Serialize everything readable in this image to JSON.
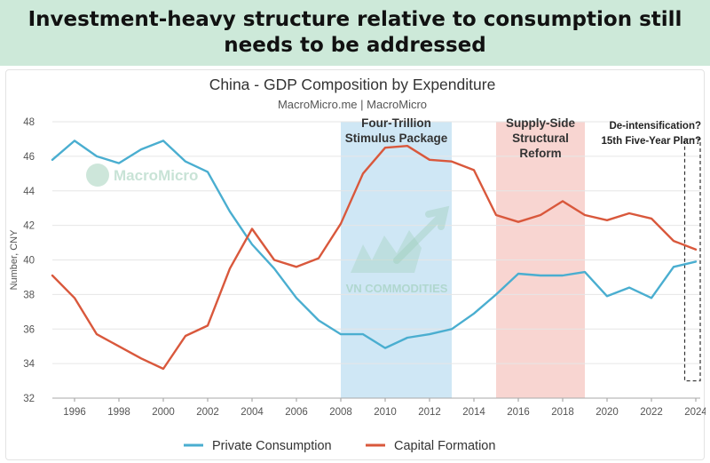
{
  "banner": {
    "title": "Investment-heavy structure relative to consumption still needs to be addressed"
  },
  "chart_data": {
    "type": "line",
    "title": "China - GDP Composition by Expenditure",
    "subtitle": "MacroMicro.me | MacroMicro",
    "ylabel": "Number, CNY",
    "xlabel": "",
    "ylim": [
      32,
      48
    ],
    "xlim": [
      1995,
      2024
    ],
    "yticks": [
      32,
      34,
      36,
      38,
      40,
      42,
      44,
      46,
      48
    ],
    "xticks": [
      1996,
      1998,
      2000,
      2002,
      2004,
      2006,
      2008,
      2010,
      2012,
      2014,
      2016,
      2018,
      2020,
      2022,
      2024
    ],
    "grid": "horizontal",
    "legend_position": "bottom",
    "x": [
      1995,
      1996,
      1997,
      1998,
      1999,
      2000,
      2001,
      2002,
      2003,
      2004,
      2005,
      2006,
      2007,
      2008,
      2009,
      2010,
      2011,
      2012,
      2013,
      2014,
      2015,
      2016,
      2017,
      2018,
      2019,
      2020,
      2021,
      2022,
      2023,
      2024
    ],
    "series": [
      {
        "name": "Private Consumption",
        "color": "#4aaed0",
        "values": [
          45.8,
          46.9,
          46.0,
          45.6,
          46.4,
          46.9,
          45.7,
          45.1,
          42.8,
          40.9,
          39.5,
          37.8,
          36.5,
          35.7,
          35.7,
          34.9,
          35.5,
          35.7,
          36.0,
          36.9,
          38.0,
          39.2,
          39.1,
          39.1,
          39.3,
          37.9,
          38.4,
          37.8,
          39.6,
          39.9
        ]
      },
      {
        "name": "Capital Formation",
        "color": "#d9583c",
        "values": [
          39.1,
          37.8,
          35.7,
          35.0,
          34.3,
          33.7,
          35.6,
          36.2,
          39.5,
          41.8,
          40.0,
          39.6,
          40.1,
          42.1,
          45.0,
          46.5,
          46.6,
          45.8,
          45.7,
          45.2,
          42.6,
          42.2,
          42.6,
          43.4,
          42.6,
          42.3,
          42.7,
          42.4,
          41.1,
          40.6
        ]
      }
    ],
    "bands": [
      {
        "label_lines": [
          "Four-Trillion",
          "Stimulus Package"
        ],
        "x_start": 2008,
        "x_end": 2013,
        "color": "#cfe7f5"
      },
      {
        "label_lines": [
          "Supply-Side",
          "Structural",
          "Reform"
        ],
        "x_start": 2015,
        "x_end": 2019,
        "color": "#f8d5d1"
      }
    ],
    "annotation": {
      "lines": [
        "De-intensification?",
        "15th Five-Year Plan?"
      ],
      "x_start": 2023.5,
      "x_end": 2024.2,
      "y_range": [
        33.0,
        47.0
      ]
    },
    "watermarks": [
      "MacroMicro",
      "VN COMMODITIES"
    ]
  }
}
